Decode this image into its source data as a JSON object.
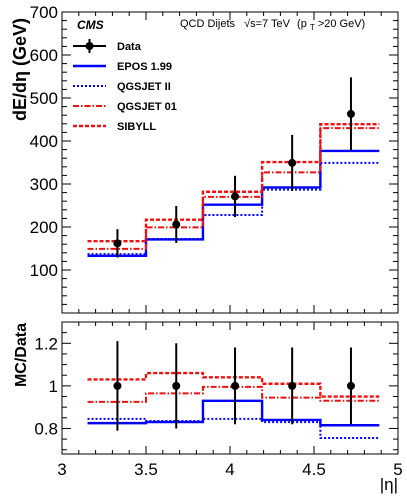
{
  "chart_data": [
    {
      "panel": "top",
      "type": "step-line-with-errorbars",
      "cms_label": "CMS",
      "header": "QCD Dijets",
      "header_energy": "√s=7 TeV",
      "header_cut_pre": "(p",
      "header_cut_sub": "T",
      "header_cut_post": ">20 GeV)",
      "ylabel": "dE/dη (GeV)",
      "xlim": [
        3,
        5
      ],
      "ylim": [
        0,
        700
      ],
      "yticks": [
        100,
        200,
        300,
        400,
        500,
        600,
        700
      ],
      "bin_edges": [
        3.152,
        3.5,
        3.839,
        4.191,
        4.538,
        4.889
      ],
      "series": [
        {
          "name": "Data",
          "style": "marker",
          "color": "#000000",
          "x": [
            3.33,
            3.68,
            4.03,
            4.37,
            4.72
          ],
          "values": [
            162,
            206,
            271,
            349,
            463
          ],
          "errors": [
            33,
            43,
            48,
            65,
            85
          ]
        },
        {
          "name": "EPOS 1.99",
          "style": "solid",
          "color": "#0000ff",
          "values": [
            133,
            171,
            252,
            292,
            377
          ]
        },
        {
          "name": "QGSJET II",
          "style": "dotted",
          "color": "#0000ff",
          "values": [
            137,
            172,
            228,
            287,
            349
          ]
        },
        {
          "name": "QGSJET 01",
          "style": "dashdot",
          "color": "#ee1111",
          "values": [
            149,
            199,
            270,
            327,
            430
          ]
        },
        {
          "name": "SIBYLL",
          "style": "dashed",
          "color": "#ee1111",
          "values": [
            167,
            217,
            282,
            351,
            439
          ]
        }
      ],
      "legend": [
        "Data",
        "EPOS 1.99",
        "QGSJET II",
        "QGSJET 01",
        "SIBYLL"
      ]
    },
    {
      "panel": "bottom",
      "type": "ratio-step-line",
      "ylabel": "MC/Data",
      "xlabel": "|η|",
      "xlim": [
        3,
        5
      ],
      "ylim": [
        0.68,
        1.3
      ],
      "xticks": [
        3,
        3.5,
        4,
        4.5,
        5
      ],
      "yticks": [
        0.8,
        1,
        1.2
      ],
      "bin_edges": [
        3.152,
        3.5,
        3.839,
        4.191,
        4.538,
        4.889
      ],
      "data_ratio": {
        "name": "Data",
        "x": [
          3.33,
          3.68,
          4.03,
          4.37,
          4.72
        ],
        "values": [
          1.0,
          1.0,
          1.0,
          1.0,
          1.0
        ],
        "errors": [
          0.21,
          0.2,
          0.18,
          0.18,
          0.18
        ]
      },
      "series": [
        {
          "name": "EPOS 1.99",
          "style": "solid",
          "color": "#0000ff",
          "values": [
            0.825,
            0.83,
            0.93,
            0.84,
            0.815
          ]
        },
        {
          "name": "QGSJET II",
          "style": "dotted",
          "color": "#0000ff",
          "values": [
            0.845,
            0.835,
            0.845,
            0.83,
            0.755
          ]
        },
        {
          "name": "QGSJET 01",
          "style": "dashdot",
          "color": "#ee1111",
          "values": [
            0.925,
            0.965,
            0.995,
            0.945,
            0.93
          ]
        },
        {
          "name": "SIBYLL",
          "style": "dashed",
          "color": "#ee1111",
          "values": [
            1.03,
            1.06,
            1.04,
            1.01,
            0.95
          ]
        }
      ]
    }
  ]
}
